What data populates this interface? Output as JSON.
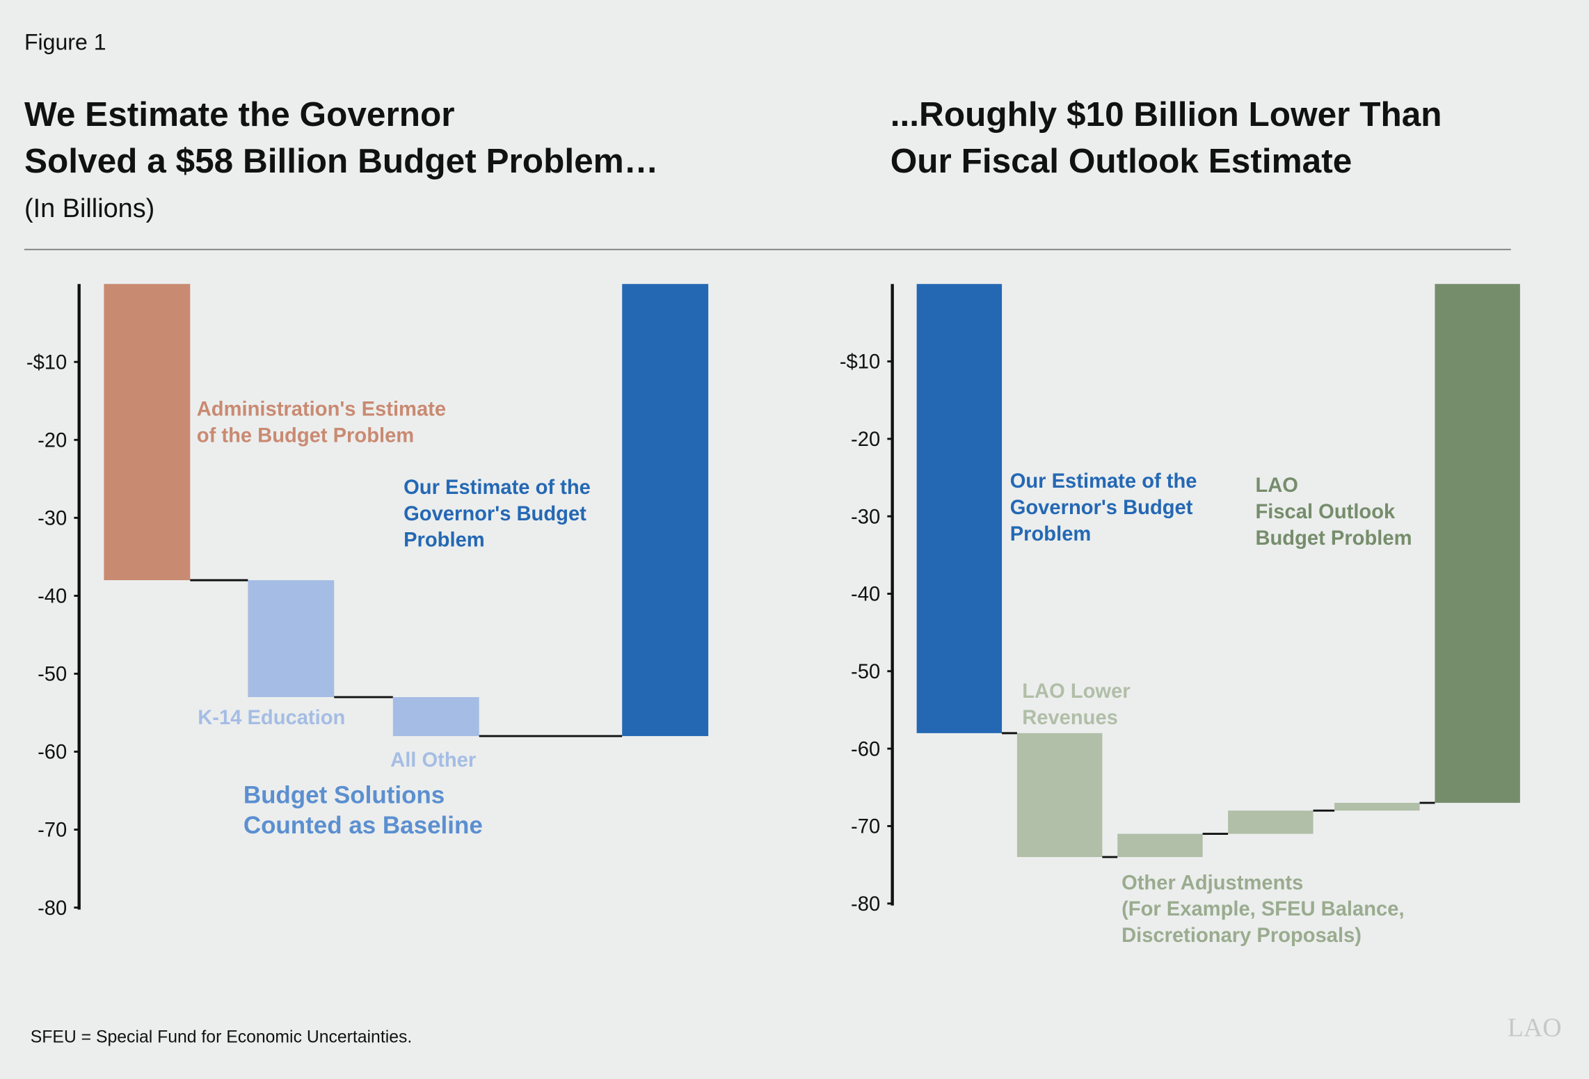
{
  "figure_label": "Figure 1",
  "footnote": "SFEU = Special Fund for Economic Uncertainties.",
  "logo": "LAO",
  "chart_data": [
    {
      "type": "waterfall",
      "title": [
        "We Estimate the Governor",
        "Solved a $58 Billion Budget Problem…"
      ],
      "subtitle": "(In Billions)",
      "categories": [
        [
          "Administration's Estimate",
          "of the Budget Problem"
        ],
        [
          "K-14 Education"
        ],
        [
          "All Other"
        ],
        [
          "Our Estimate of the",
          "Governor's Budget",
          "Problem"
        ]
      ],
      "values": [
        -38,
        -15,
        -5,
        -58
      ],
      "totals": [
        true,
        false,
        false,
        true
      ],
      "colors": [
        "#c98a72",
        "#a5bde4",
        "#a5bde4",
        "#2468b4"
      ],
      "annotation": {
        "text": [
          "Budget Solutions",
          "Counted as Baseline"
        ],
        "color": "#5b8fd0"
      },
      "ylim": [
        -80,
        0
      ],
      "yticks": [
        {
          "value": -10,
          "label": "-$10"
        },
        -20,
        -30,
        -40,
        -50,
        -60,
        -70,
        -80
      ]
    },
    {
      "type": "waterfall",
      "title": [
        "...Roughly $10 Billion Lower Than",
        "Our Fiscal Outlook Estimate"
      ],
      "categories": [
        [
          "Our Estimate of the",
          "Governor's Budget",
          "Problem"
        ],
        [
          "LAO Lower",
          "Revenues"
        ],
        null,
        null,
        null,
        [
          "LAO",
          "Fiscal Outlook",
          "Budget Problem"
        ]
      ],
      "values": [
        -58,
        -16,
        3,
        3,
        1,
        -67
      ],
      "totals": [
        true,
        false,
        false,
        false,
        false,
        true
      ],
      "colors": [
        "#2468b4",
        "#b1bea8",
        "#b1bea8",
        "#b1bea8",
        "#b1bea8",
        "#768d6c"
      ],
      "annotation": {
        "text": [
          "Other Adjustments",
          "(For Example, SFEU Balance,",
          "Discretionary Proposals)"
        ],
        "color": "#9aab8f"
      },
      "ylim": [
        -80,
        0
      ],
      "yticks": [
        {
          "value": -10,
          "label": "-$10"
        },
        -20,
        -30,
        -40,
        -50,
        -60,
        -70,
        -80
      ]
    }
  ]
}
